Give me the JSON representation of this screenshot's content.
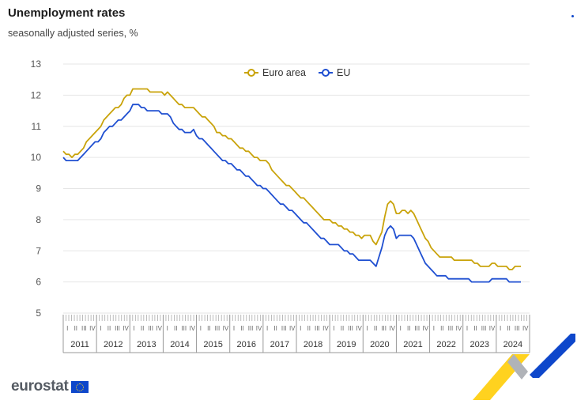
{
  "header": {
    "title": "Unemployment rates",
    "subtitle": "seasonally adjusted series, %"
  },
  "logo": {
    "text": "eurostat"
  },
  "colors": {
    "euro_area": "#c9a30a",
    "eu": "#1f4fd1",
    "grid": "#e6e6e6",
    "axis_text": "#555555"
  },
  "chart_data": {
    "type": "line",
    "x_start": "2011-01",
    "x_end": "2024-03",
    "frequency": "monthly",
    "ylim": [
      5,
      13
    ],
    "yticks": [
      5,
      6,
      7,
      8,
      9,
      10,
      11,
      12,
      13
    ],
    "grid": true,
    "legend_position": "top-center",
    "quarter_labels": [
      "I",
      "II",
      "III",
      "IV"
    ],
    "years": [
      "2011",
      "2012",
      "2013",
      "2014",
      "2015",
      "2016",
      "2017",
      "2018",
      "2019",
      "2020",
      "2021",
      "2022",
      "2023",
      "2024"
    ],
    "series": [
      {
        "name": "Euro area",
        "values": [
          10.2,
          10.1,
          10.1,
          10.0,
          10.1,
          10.1,
          10.2,
          10.3,
          10.5,
          10.6,
          10.7,
          10.8,
          10.9,
          11.0,
          11.2,
          11.3,
          11.4,
          11.5,
          11.6,
          11.6,
          11.7,
          11.9,
          12.0,
          12.0,
          12.2,
          12.2,
          12.2,
          12.2,
          12.2,
          12.2,
          12.1,
          12.1,
          12.1,
          12.1,
          12.1,
          12.0,
          12.1,
          12.0,
          11.9,
          11.8,
          11.7,
          11.7,
          11.6,
          11.6,
          11.6,
          11.6,
          11.5,
          11.4,
          11.3,
          11.3,
          11.2,
          11.1,
          11.0,
          10.8,
          10.8,
          10.7,
          10.7,
          10.6,
          10.6,
          10.5,
          10.4,
          10.3,
          10.3,
          10.2,
          10.2,
          10.1,
          10.0,
          10.0,
          9.9,
          9.9,
          9.9,
          9.8,
          9.6,
          9.5,
          9.4,
          9.3,
          9.2,
          9.1,
          9.1,
          9.0,
          8.9,
          8.8,
          8.7,
          8.7,
          8.6,
          8.5,
          8.4,
          8.3,
          8.2,
          8.1,
          8.0,
          8.0,
          8.0,
          7.9,
          7.9,
          7.8,
          7.8,
          7.7,
          7.7,
          7.6,
          7.6,
          7.5,
          7.5,
          7.4,
          7.5,
          7.5,
          7.5,
          7.3,
          7.2,
          7.4,
          7.6,
          8.1,
          8.5,
          8.6,
          8.5,
          8.2,
          8.2,
          8.3,
          8.3,
          8.2,
          8.3,
          8.2,
          8.0,
          7.8,
          7.6,
          7.4,
          7.3,
          7.1,
          7.0,
          6.9,
          6.8,
          6.8,
          6.8,
          6.8,
          6.8,
          6.7,
          6.7,
          6.7,
          6.7,
          6.7,
          6.7,
          6.7,
          6.6,
          6.6,
          6.5,
          6.5,
          6.5,
          6.5,
          6.6,
          6.6,
          6.5,
          6.5,
          6.5,
          6.5,
          6.4,
          6.4,
          6.5,
          6.5,
          6.5
        ]
      },
      {
        "name": "EU",
        "values": [
          10.0,
          9.9,
          9.9,
          9.9,
          9.9,
          9.9,
          10.0,
          10.1,
          10.2,
          10.3,
          10.4,
          10.5,
          10.5,
          10.6,
          10.8,
          10.9,
          11.0,
          11.0,
          11.1,
          11.2,
          11.2,
          11.3,
          11.4,
          11.5,
          11.7,
          11.7,
          11.7,
          11.6,
          11.6,
          11.5,
          11.5,
          11.5,
          11.5,
          11.5,
          11.4,
          11.4,
          11.4,
          11.3,
          11.1,
          11.0,
          10.9,
          10.9,
          10.8,
          10.8,
          10.8,
          10.9,
          10.7,
          10.6,
          10.6,
          10.5,
          10.4,
          10.3,
          10.2,
          10.1,
          10.0,
          9.9,
          9.9,
          9.8,
          9.8,
          9.7,
          9.6,
          9.6,
          9.5,
          9.4,
          9.4,
          9.3,
          9.2,
          9.1,
          9.1,
          9.0,
          9.0,
          8.9,
          8.8,
          8.7,
          8.6,
          8.5,
          8.5,
          8.4,
          8.3,
          8.3,
          8.2,
          8.1,
          8.0,
          7.9,
          7.9,
          7.8,
          7.7,
          7.6,
          7.5,
          7.4,
          7.4,
          7.3,
          7.2,
          7.2,
          7.2,
          7.2,
          7.1,
          7.0,
          7.0,
          6.9,
          6.9,
          6.8,
          6.7,
          6.7,
          6.7,
          6.7,
          6.7,
          6.6,
          6.5,
          6.8,
          7.1,
          7.5,
          7.7,
          7.8,
          7.7,
          7.4,
          7.5,
          7.5,
          7.5,
          7.5,
          7.5,
          7.4,
          7.2,
          7.0,
          6.8,
          6.6,
          6.5,
          6.4,
          6.3,
          6.2,
          6.2,
          6.2,
          6.2,
          6.1,
          6.1,
          6.1,
          6.1,
          6.1,
          6.1,
          6.1,
          6.1,
          6.0,
          6.0,
          6.0,
          6.0,
          6.0,
          6.0,
          6.0,
          6.1,
          6.1,
          6.1,
          6.1,
          6.1,
          6.1,
          6.0,
          6.0,
          6.0,
          6.0,
          6.0
        ]
      }
    ]
  }
}
